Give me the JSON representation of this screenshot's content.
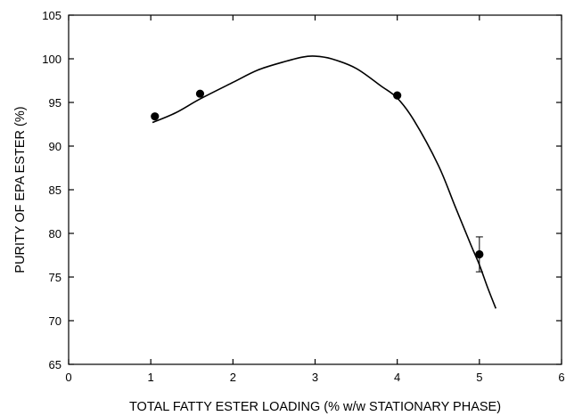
{
  "chart_data": {
    "type": "scatter",
    "title": "",
    "xlabel": "TOTAL FATTY ESTER LOADING (% w/w STATIONARY PHASE)",
    "ylabel": "PURITY OF EPA ESTER (%)",
    "xlim": [
      0,
      6
    ],
    "ylim": [
      65,
      105
    ],
    "xticks": [
      0,
      1,
      2,
      3,
      4,
      5,
      6
    ],
    "yticks": [
      65,
      70,
      75,
      80,
      85,
      90,
      95,
      100,
      105
    ],
    "grid": false,
    "points": [
      {
        "x": 1.05,
        "y": 93.4
      },
      {
        "x": 1.6,
        "y": 96.0
      },
      {
        "x": 4.0,
        "y": 95.8
      },
      {
        "x": 5.0,
        "y": 77.6,
        "err_low": 75.6,
        "err_high": 79.6
      }
    ],
    "fit_curve": {
      "x": [
        1.02,
        1.3,
        1.6,
        2.0,
        2.3,
        2.6,
        2.85,
        3.0,
        3.2,
        3.5,
        3.8,
        4.0,
        4.2,
        4.5,
        4.7,
        4.9,
        5.0,
        5.1,
        5.2
      ],
      "y": [
        92.7,
        93.8,
        95.4,
        97.3,
        98.7,
        99.6,
        100.2,
        100.3,
        100.0,
        98.9,
        96.9,
        95.5,
        93.0,
        87.8,
        83.2,
        78.6,
        76.4,
        73.8,
        71.4
      ]
    },
    "colors": {
      "axis": "#000000",
      "marker": "#000000",
      "curve": "#000000"
    }
  }
}
